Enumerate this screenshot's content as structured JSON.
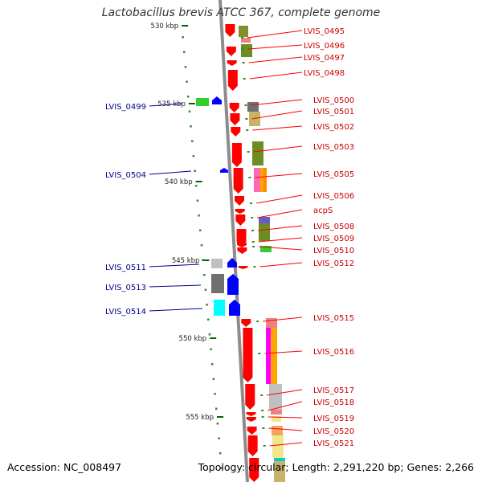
{
  "title": "Lactobacillus brevis ATCC 367, complete genome",
  "footer": {
    "accession": "Accession: NC_008497",
    "summary": "Topology: circular; Length: 2,291,220 bp; Genes: 2,266"
  },
  "colors": {
    "backbone": "#8c8c8c",
    "forward_cds": "#ff0000",
    "reverse_cds": "#0000ff",
    "forward_label": "#cc0000",
    "reverse_label": "#00008b",
    "tick": "#2e8b2e",
    "ruler": "#006400"
  },
  "ruler": {
    "labels": [
      "530 kbp",
      "535 kbp",
      "540 kbp",
      "545 kbp",
      "550 kbp",
      "555 kbp"
    ]
  },
  "forward_genes": [
    {
      "name": "LVIS_0495"
    },
    {
      "name": "LVIS_0496"
    },
    {
      "name": "LVIS_0497"
    },
    {
      "name": "LVIS_0498"
    },
    {
      "name": "LVIS_0500"
    },
    {
      "name": "LVIS_0501"
    },
    {
      "name": "LVIS_0502"
    },
    {
      "name": "LVIS_0503"
    },
    {
      "name": "LVIS_0505"
    },
    {
      "name": "LVIS_0506"
    },
    {
      "name": "acpS"
    },
    {
      "name": "LVIS_0508"
    },
    {
      "name": "LVIS_0509"
    },
    {
      "name": "LVIS_0510"
    },
    {
      "name": "LVIS_0512"
    },
    {
      "name": "LVIS_0515"
    },
    {
      "name": "LVIS_0516"
    },
    {
      "name": "LVIS_0517"
    },
    {
      "name": "LVIS_0518"
    },
    {
      "name": "LVIS_0519"
    },
    {
      "name": "LVIS_0520"
    },
    {
      "name": "LVIS_0521"
    }
  ],
  "reverse_genes": [
    {
      "name": "LVIS_0499"
    },
    {
      "name": "LVIS_0504"
    },
    {
      "name": "LVIS_0511"
    },
    {
      "name": "LVIS_0513"
    },
    {
      "name": "LVIS_0514"
    }
  ]
}
